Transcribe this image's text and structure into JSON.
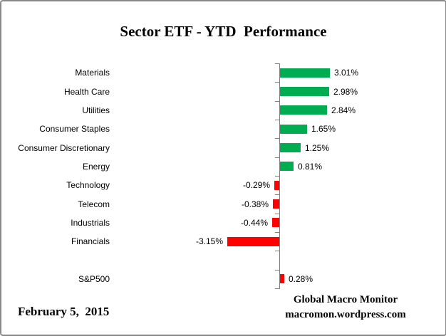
{
  "title": "Sector ETF - YTD  Performance",
  "footer": {
    "date": "February 5,  2015",
    "attribution_line1": "Global Macro Monitor",
    "attribution_line2": "macromon.wordpress.com"
  },
  "colors": {
    "positive_bar": "#00AC50",
    "negative_bar": "#FF0000",
    "sp500_bar": "#FF0000",
    "axis": "#808080",
    "frame_border": "#888888",
    "background": "#ffffff",
    "text": "#000000"
  },
  "chart_data": {
    "type": "bar",
    "orientation": "horizontal",
    "title": "Sector ETF - YTD  Performance",
    "xlabel": "",
    "ylabel": "",
    "xlim": [
      -3.5,
      3.5
    ],
    "grid": false,
    "legend": false,
    "value_suffix": "%",
    "categories": [
      "Materials",
      "Health Care",
      "Utilities",
      "Consumer Staples",
      "Consumer Discretionary",
      "Energy",
      "Technology",
      "Telecom",
      "Industrials",
      "Financials",
      "",
      "S&P500"
    ],
    "values": [
      3.01,
      2.98,
      2.84,
      1.65,
      1.25,
      0.81,
      -0.29,
      -0.38,
      -0.44,
      -3.15,
      null,
      0.28
    ],
    "rows": [
      {
        "label": "Materials",
        "value": 3.01,
        "display": "3.01%",
        "color": "#00AC50"
      },
      {
        "label": "Health Care",
        "value": 2.98,
        "display": "2.98%",
        "color": "#00AC50"
      },
      {
        "label": "Utilities",
        "value": 2.84,
        "display": "2.84%",
        "color": "#00AC50"
      },
      {
        "label": "Consumer Staples",
        "value": 1.65,
        "display": "1.65%",
        "color": "#00AC50"
      },
      {
        "label": "Consumer Discretionary",
        "value": 1.25,
        "display": "1.25%",
        "color": "#00AC50"
      },
      {
        "label": "Energy",
        "value": 0.81,
        "display": "0.81%",
        "color": "#00AC50"
      },
      {
        "label": "Technology",
        "value": -0.29,
        "display": "-0.29%",
        "color": "#FF0000"
      },
      {
        "label": "Telecom",
        "value": -0.38,
        "display": "-0.38%",
        "color": "#FF0000"
      },
      {
        "label": "Industrials",
        "value": -0.44,
        "display": "-0.44%",
        "color": "#FF0000"
      },
      {
        "label": "Financials",
        "value": -3.15,
        "display": "-3.15%",
        "color": "#FF0000"
      },
      {
        "label": "",
        "value": null,
        "display": "",
        "color": null
      },
      {
        "label": "S&P500",
        "value": 0.28,
        "display": "0.28%",
        "color": "#FF0000"
      }
    ]
  }
}
